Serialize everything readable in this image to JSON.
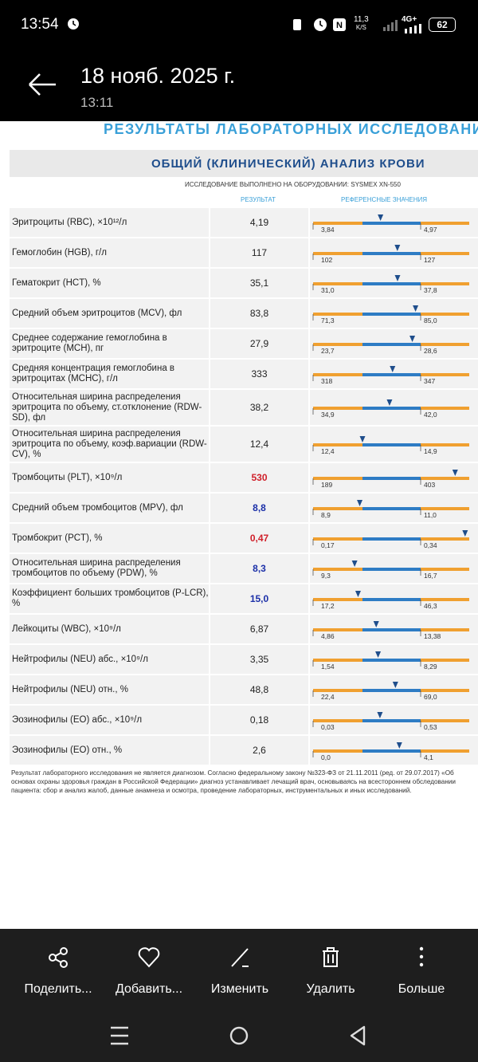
{
  "status_bar": {
    "time": "13:54",
    "net_speed": "11,3",
    "net_unit": "K/S",
    "network": "4G+",
    "battery": "62"
  },
  "header": {
    "title": "18 нояб. 2025 г.",
    "subtitle": "13:11"
  },
  "document": {
    "title": "РЕЗУЛЬТАТЫ ЛАБОРАТОРНЫХ ИССЛЕДОВАНИЙ",
    "section": "ОБЩИЙ (КЛИНИЧЕСКИЙ) АНАЛИЗ КРОВИ",
    "equipment": "ИССЛЕДОВАНИЕ ВЫПОЛНЕНО НА ОБОРУДОВАНИИ: SYSMEX XN-550",
    "columns": {
      "result": "РЕЗУЛЬТАТ",
      "reference": "РЕФЕРЕНСНЫЕ ЗНАЧЕНИЯ"
    },
    "rows": [
      {
        "name": "Эритроциты (RBC), ×10¹²/л",
        "result": "4,19",
        "low": "3,84",
        "high": "4,97",
        "color": "#222222"
      },
      {
        "name": "Гемоглобин (HGB), г/л",
        "result": "117",
        "low": "102",
        "high": "127",
        "color": "#222222"
      },
      {
        "name": "Гематокрит (HCT), %",
        "result": "35,1",
        "low": "31,0",
        "high": "37,8",
        "color": "#222222"
      },
      {
        "name": "Средний объем эритроцитов (MCV), фл",
        "result": "83,8",
        "low": "71,3",
        "high": "85,0",
        "color": "#222222"
      },
      {
        "name": "Среднее содержание гемоглобина в эритроците (MCH), пг",
        "result": "27,9",
        "low": "23,7",
        "high": "28,6",
        "color": "#222222"
      },
      {
        "name": "Средняя концентрация гемоглобина в эритроцитах (MCHC), г/л",
        "result": "333",
        "low": "318",
        "high": "347",
        "color": "#222222"
      },
      {
        "name": "Относительная ширина распределения эритроцита по объему, ст.отклонение (RDW-SD), фл",
        "result": "38,2",
        "low": "34,9",
        "high": "42,0",
        "color": "#222222"
      },
      {
        "name": "Относительная ширина распределения эритроцита по объему, коэф.вариации (RDW-CV), %",
        "result": "12,4",
        "low": "12,4",
        "high": "14,9",
        "color": "#222222"
      },
      {
        "name": "Тромбоциты (PLT), ×10⁹/л",
        "result": "530",
        "low": "189",
        "high": "403",
        "color": "#d0202a"
      },
      {
        "name": "Средний объем тромбоцитов (MPV), фл",
        "result": "8,8",
        "low": "8,9",
        "high": "11,0",
        "color": "#1b2fa8"
      },
      {
        "name": "Тромбокрит (PCT), %",
        "result": "0,47",
        "low": "0,17",
        "high": "0,34",
        "color": "#d0202a"
      },
      {
        "name": "Относительная ширина распределения тромбоцитов по объему (PDW), %",
        "result": "8,3",
        "low": "9,3",
        "high": "16,7",
        "color": "#1b2fa8"
      },
      {
        "name": "Коэффициент больших тромбоцитов (P-LCR), %",
        "result": "15,0",
        "low": "17,2",
        "high": "46,3",
        "color": "#1b2fa8"
      },
      {
        "name": "Лейкоциты (WBC), ×10⁹/л",
        "result": "6,87",
        "low": "4,86",
        "high": "13,38",
        "color": "#222222"
      },
      {
        "name": "Нейтрофилы (NEU) абс., ×10⁹/л",
        "result": "3,35",
        "low": "1,54",
        "high": "8,29",
        "color": "#222222"
      },
      {
        "name": "Нейтрофилы (NEU) отн., %",
        "result": "48,8",
        "low": "22,4",
        "high": "69,0",
        "color": "#222222"
      },
      {
        "name": "Эозинофилы (EO) абс., ×10⁹/л",
        "result": "0,18",
        "low": "0,03",
        "high": "0,53",
        "color": "#222222"
      },
      {
        "name": "Эозинофилы (EO) отн., %",
        "result": "2,6",
        "low": "0,0",
        "high": "4,1",
        "color": "#222222"
      }
    ],
    "note": [
      "Результат лабораторного исследования не является диагнозом. Согласно федеральному закону №323-ФЗ от 21.11.2011 (ред. от 29.07.2017) «Об",
      "основах охраны здоровья граждан в Российской Федерации» диагноз устанавливает лечащий врач, основываясь на всестороннем обследовании",
      "пациента: сбор и анализ жалоб, данные анамнеза и осмотра, проведение лабораторных, инструментальных и иных исследований."
    ]
  },
  "actions": [
    {
      "label": "Поделить..."
    },
    {
      "label": "Добавить..."
    },
    {
      "label": "Изменить"
    },
    {
      "label": "Удалить"
    },
    {
      "label": "Больше"
    }
  ]
}
